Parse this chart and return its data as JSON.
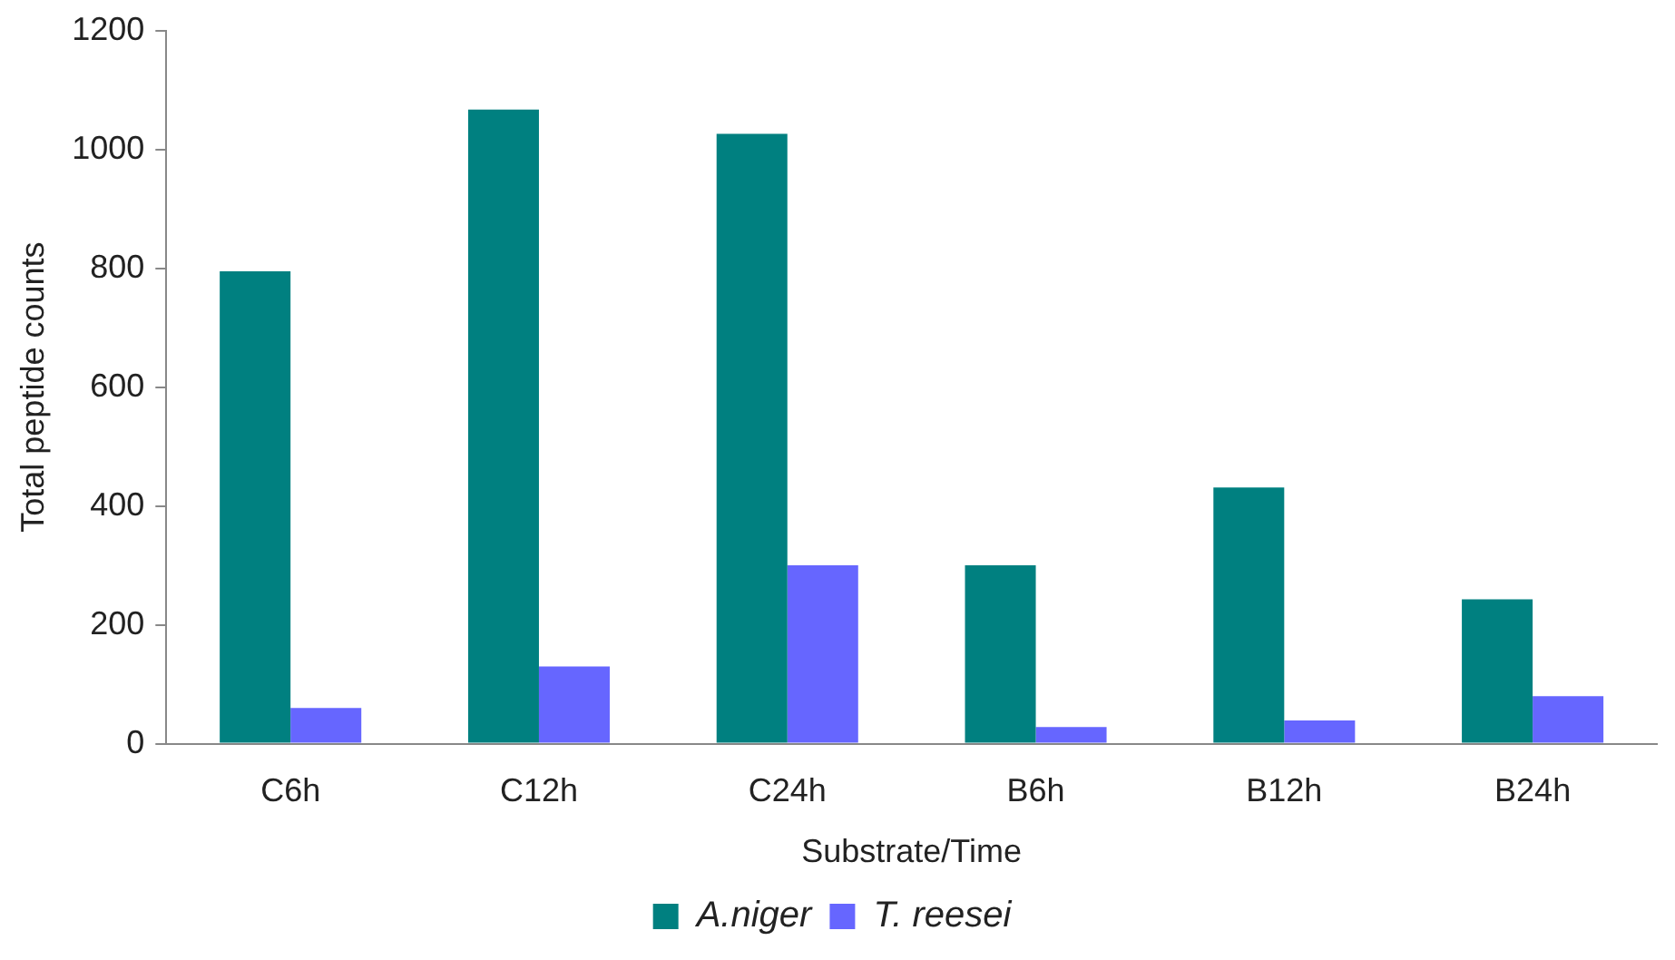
{
  "chart_data": {
    "type": "bar",
    "xlabel": "Substrate/Time",
    "ylabel": "Total peptide counts",
    "categories": [
      "C6h",
      "C12h",
      "C24h",
      "B6h",
      "B12h",
      "B24h"
    ],
    "series": [
      {
        "name": "A.niger",
        "color": "#008080",
        "values": [
          795,
          1067,
          1026,
          300,
          431,
          243
        ]
      },
      {
        "name": "T. reesei",
        "color": "#6666ff",
        "values": [
          60,
          130,
          300,
          28,
          39,
          80
        ]
      }
    ],
    "ylim": [
      0,
      1200
    ],
    "yticks": [
      0,
      200,
      400,
      600,
      800,
      1000,
      1200
    ],
    "grid": false,
    "legend": "bottom"
  }
}
